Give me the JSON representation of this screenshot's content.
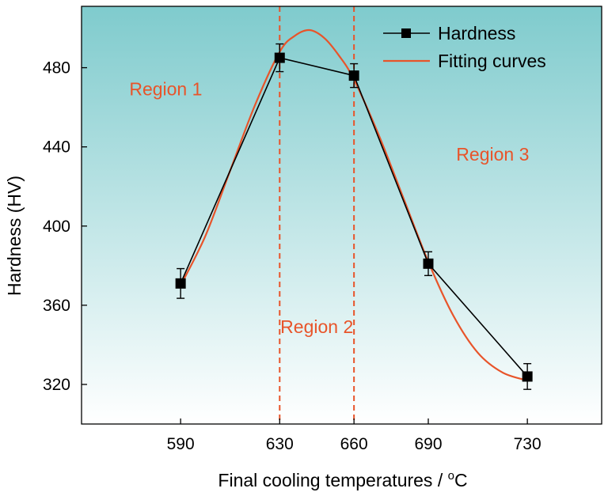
{
  "chart_data": {
    "type": "line",
    "xlabel": "Final cooling temperatures / ",
    "xlabel_sup": "o",
    "xlabel_tail": "C",
    "ylabel": "Hardness (HV)",
    "xlim": [
      550,
      760
    ],
    "ylim": [
      300,
      511
    ],
    "xticks": [
      590,
      630,
      660,
      690,
      730
    ],
    "yticks": [
      320,
      360,
      400,
      440,
      480
    ],
    "series": [
      {
        "name": "Hardness",
        "color": "#000000",
        "marker": "square",
        "x": [
          590,
          630,
          660,
          690,
          730
        ],
        "y": [
          371,
          485,
          476,
          381,
          324
        ],
        "error": [
          7.5,
          7,
          6,
          6,
          6.5
        ]
      },
      {
        "name": "Fitting curves",
        "color": "#e8542a",
        "x": [
          590,
          600,
          610,
          620,
          630,
          636,
          642,
          648,
          654,
          660,
          670,
          680,
          690,
          700,
          710,
          720,
          730
        ],
        "y": [
          370,
          395,
          428,
          461,
          488,
          496,
          499,
          495,
          486,
          474,
          446,
          414,
          382,
          355,
          336,
          326,
          322
        ]
      }
    ],
    "vlines": [
      630,
      660
    ],
    "vline_color": "#e8542a",
    "annotations": [
      {
        "text": "Region 1",
        "x": 584,
        "y": 466
      },
      {
        "text": "Region 2",
        "x": 645,
        "y": 346
      },
      {
        "text": "Region 3",
        "x": 716,
        "y": 433
      }
    ],
    "annotation_color": "#e8542a",
    "legend_position": "top-right",
    "background_gradient": [
      "#7fcbcd",
      "#ffffff"
    ]
  }
}
